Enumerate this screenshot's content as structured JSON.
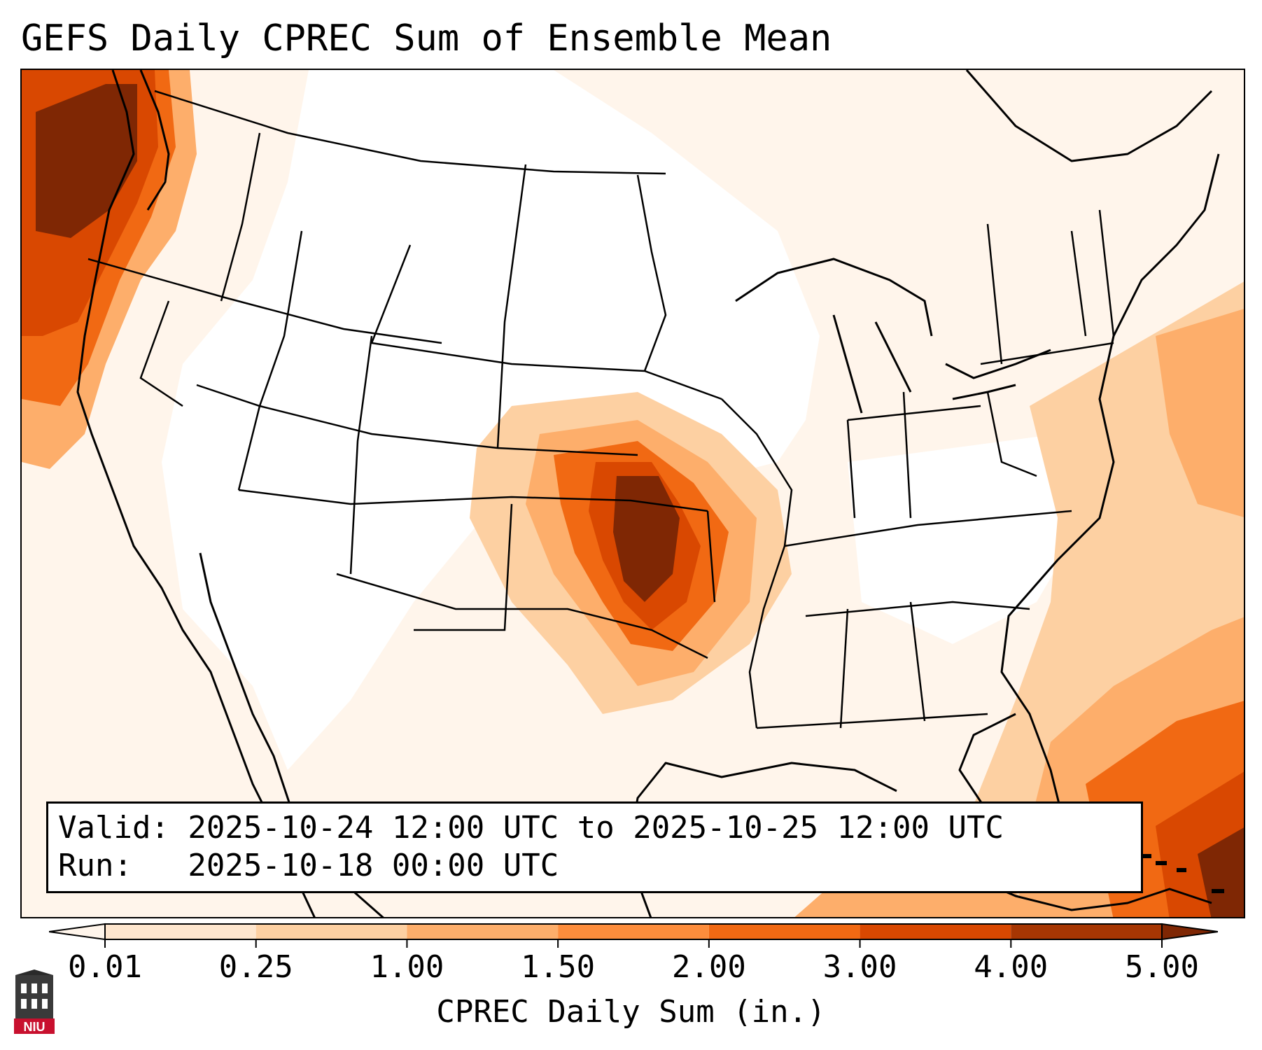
{
  "title": "GEFS Daily CPREC Sum of Ensemble Mean",
  "info": {
    "valid_line": "Valid: 2025-10-24 12:00 UTC to 2025-10-25 12:00 UTC",
    "run_line": "Run:   2025-10-18 00:00 UTC"
  },
  "colorbar": {
    "label": "CPREC Daily Sum (in.)",
    "ticks": [
      "0.01",
      "0.25",
      "1.00",
      "1.50",
      "2.00",
      "3.00",
      "4.00",
      "5.00"
    ],
    "colors": [
      "#fff5eb",
      "#fee6ce",
      "#fdd0a2",
      "#fdae6b",
      "#fd8d3c",
      "#f16913",
      "#d94801",
      "#a63603",
      "#7f2704"
    ]
  },
  "logo": {
    "text": "NIU",
    "icon": "niu-logo-icon"
  }
}
